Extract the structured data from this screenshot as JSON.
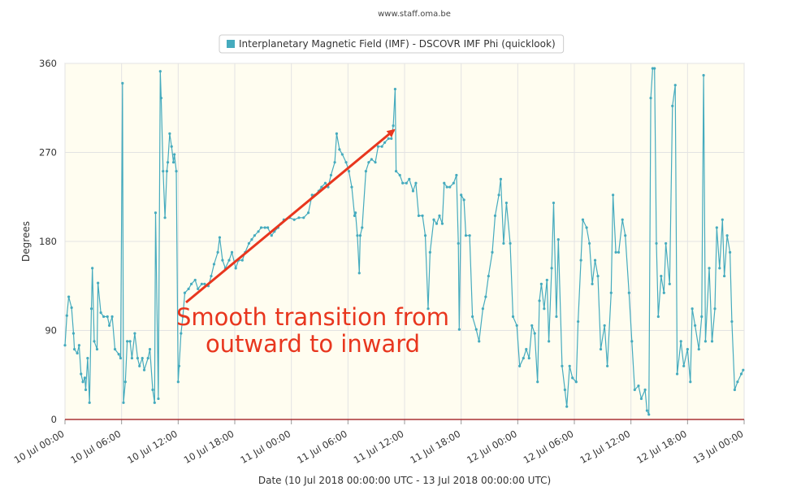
{
  "chart_data": {
    "type": "line",
    "source": "www.staff.oma.be",
    "xlabel": "Date (10 Jul 2018 00:00:00 UTC - 13 Jul 2018 00:00:00 UTC)",
    "ylabel": "Degrees",
    "annotation": [
      "Smooth transition from",
      "outward to inward"
    ],
    "annotation_color": "#e8361e",
    "grid": true,
    "xlim": [
      0,
      72
    ],
    "ylim": [
      0,
      360
    ],
    "yticks": [
      0,
      90,
      180,
      270,
      360
    ],
    "xticks": [
      {
        "value": 0,
        "label": "10 Jul 00:00"
      },
      {
        "value": 6,
        "label": "10 Jul 06:00"
      },
      {
        "value": 12,
        "label": "10 Jul 12:00"
      },
      {
        "value": 18,
        "label": "10 Jul 18:00"
      },
      {
        "value": 24,
        "label": "11 Jul 00:00"
      },
      {
        "value": 30,
        "label": "11 Jul 06:00"
      },
      {
        "value": 36,
        "label": "11 Jul 12:00"
      },
      {
        "value": 42,
        "label": "11 Jul 18:00"
      },
      {
        "value": 48,
        "label": "12 Jul 00:00"
      },
      {
        "value": 54,
        "label": "12 Jul 06:00"
      },
      {
        "value": 60,
        "label": "12 Jul 12:00"
      },
      {
        "value": 66,
        "label": "12 Jul 18:00"
      },
      {
        "value": 72,
        "label": "13 Jul 00:00"
      }
    ],
    "x": [
      0,
      0.2,
      0.4,
      0.7,
      0.9,
      1.0,
      1.3,
      1.5,
      1.7,
      1.9,
      2.1,
      2.2,
      2.4,
      2.6,
      2.8,
      2.9,
      3.1,
      3.4,
      3.5,
      3.8,
      4.1,
      4.5,
      4.7,
      5.0,
      5.3,
      5.7,
      5.9,
      6.1,
      6.2,
      6.4,
      6.6,
      6.9,
      7.1,
      7.4,
      7.7,
      7.9,
      8.2,
      8.4,
      8.8,
      9.0,
      9.3,
      9.5,
      9.6,
      9.9,
      10.1,
      10.2,
      10.4,
      10.6,
      10.8,
      10.9,
      11.1,
      11.3,
      11.5,
      11.6,
      11.8,
      12.0,
      12.1,
      12.3,
      12.5,
      12.7,
      13.1,
      13.4,
      13.8,
      14.1,
      14.5,
      14.8,
      15.2,
      15.5,
      15.8,
      16.2,
      16.4,
      16.7,
      17.0,
      17.4,
      17.7,
      18.1,
      18.4,
      18.8,
      19.1,
      19.5,
      19.8,
      20.1,
      20.5,
      20.8,
      21.2,
      21.5,
      21.9,
      22.2,
      22.6,
      22.9,
      23.2,
      23.8,
      24.3,
      24.8,
      25.3,
      25.8,
      26.2,
      26.5,
      26.9,
      27.2,
      27.6,
      27.9,
      28.2,
      28.6,
      28.8,
      29.1,
      29.4,
      29.8,
      30.1,
      30.4,
      30.7,
      30.8,
      31.0,
      31.2,
      31.3,
      31.5,
      31.9,
      32.2,
      32.5,
      32.9,
      33.2,
      33.6,
      33.9,
      34.3,
      34.6,
      34.8,
      35.0,
      35.1,
      35.5,
      35.8,
      36.2,
      36.5,
      36.9,
      37.2,
      37.5,
      37.9,
      38.2,
      38.5,
      38.7,
      39.1,
      39.4,
      39.7,
      40.0,
      40.2,
      40.5,
      40.8,
      41.2,
      41.5,
      41.7,
      41.8,
      42.0,
      42.3,
      42.5,
      42.9,
      43.2,
      43.6,
      43.9,
      44.3,
      44.6,
      44.9,
      45.3,
      45.6,
      46.0,
      46.2,
      46.5,
      46.8,
      47.2,
      47.5,
      47.9,
      48.2,
      48.6,
      48.9,
      49.2,
      49.5,
      49.8,
      50.1,
      50.3,
      50.5,
      50.8,
      51.1,
      51.3,
      51.6,
      51.8,
      52.1,
      52.3,
      52.7,
      53.0,
      53.2,
      53.5,
      53.8,
      54.2,
      54.4,
      54.7,
      54.9,
      55.3,
      55.6,
      55.9,
      56.2,
      56.5,
      56.8,
      57.2,
      57.5,
      57.9,
      58.1,
      58.4,
      58.7,
      59.1,
      59.4,
      59.8,
      60.1,
      60.4,
      60.8,
      61.1,
      61.5,
      61.7,
      61.9,
      62.1,
      62.3,
      62.5,
      62.7,
      62.9,
      63.2,
      63.5,
      63.7,
      64.1,
      64.4,
      64.7,
      64.9,
      65.3,
      65.6,
      66.0,
      66.3,
      66.5,
      66.8,
      67.2,
      67.5,
      67.7,
      67.9,
      68.3,
      68.6,
      68.9,
      69.1,
      69.4,
      69.7,
      69.9,
      70.2,
      70.5,
      70.7,
      71.0,
      71.3,
      71.7,
      71.9
    ],
    "series": [
      {
        "name": "Interplanetary Magnetic Field (IMF) - DSCOVR IMF Phi (quicklook)",
        "color": "#45abbe",
        "values": [
          75,
          105,
          124,
          113,
          87,
          71,
          67,
          75,
          46,
          38,
          42,
          30,
          62,
          17,
          112,
          153,
          79,
          71,
          138,
          108,
          104,
          104,
          95,
          104,
          71,
          66,
          62,
          340,
          17,
          38,
          79,
          79,
          62,
          87,
          62,
          54,
          62,
          50,
          62,
          71,
          30,
          17,
          209,
          21,
          352,
          325,
          251,
          204,
          251,
          260,
          289,
          276,
          260,
          268,
          251,
          38,
          54,
          87,
          104,
          128,
          132,
          137,
          141,
          132,
          137,
          137,
          135,
          145,
          157,
          169,
          184,
          161,
          153,
          161,
          169,
          153,
          161,
          161,
          169,
          178,
          182,
          186,
          190,
          194,
          194,
          194,
          186,
          190,
          194,
          198,
          202,
          204,
          202,
          204,
          204,
          209,
          227,
          227,
          231,
          235,
          239,
          235,
          247,
          260,
          289,
          273,
          268,
          260,
          251,
          235,
          206,
          209,
          186,
          148,
          186,
          194,
          251,
          260,
          263,
          260,
          276,
          276,
          280,
          284,
          284,
          297,
          334,
          251,
          247,
          239,
          239,
          243,
          231,
          239,
          206,
          206,
          186,
          112,
          169,
          202,
          198,
          206,
          198,
          239,
          235,
          235,
          239,
          247,
          178,
          91,
          227,
          222,
          186,
          186,
          104,
          91,
          79,
          112,
          124,
          145,
          169,
          206,
          227,
          243,
          178,
          219,
          178,
          104,
          95,
          54,
          62,
          71,
          62,
          95,
          87,
          38,
          120,
          137,
          112,
          141,
          79,
          153,
          219,
          104,
          182,
          54,
          30,
          13,
          54,
          42,
          38,
          99,
          161,
          202,
          194,
          178,
          137,
          161,
          145,
          71,
          95,
          54,
          128,
          227,
          169,
          169,
          202,
          186,
          128,
          79,
          30,
          34,
          21,
          30,
          9,
          5,
          325,
          355,
          355,
          178,
          104,
          145,
          128,
          178,
          137,
          317,
          338,
          46,
          79,
          54,
          71,
          38,
          112,
          95,
          71,
          104,
          348,
          79,
          153,
          79,
          112,
          194,
          153,
          202,
          145,
          186,
          169,
          99,
          30,
          38,
          46,
          50
        ]
      }
    ]
  }
}
